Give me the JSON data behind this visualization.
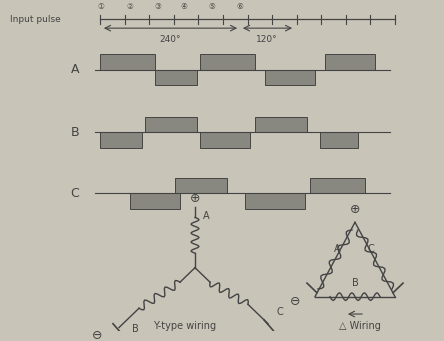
{
  "bg_color": "#c8c4b8",
  "gray_box": "#888880",
  "line_color": "#444444",
  "input_pulse_label": "Input pulse",
  "numbers": [
    "①",
    "②",
    "③",
    "④",
    "⑤",
    "⑥"
  ],
  "angle_240": "240°",
  "angle_120": "120°",
  "y_label_wiring": "Y-type wiring",
  "delta_label_wiring": "△ Wiring",
  "fig_width": 4.44,
  "fig_height": 3.41,
  "fig_dpi": 100
}
